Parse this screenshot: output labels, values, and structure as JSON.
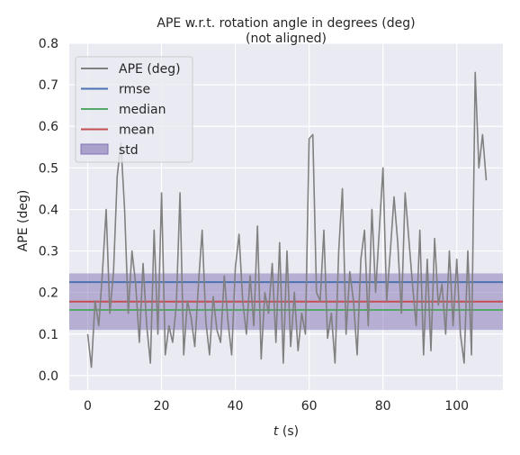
{
  "chart_data": {
    "type": "line",
    "title": "APE w.r.t. rotation angle in degrees (deg)",
    "subtitle": "(not aligned)",
    "xlabel_italic": "t",
    "xlabel_unit": " (s)",
    "ylabel": "APE (deg)",
    "xlim": [
      -5,
      112.5
    ],
    "ylim": [
      -0.035,
      0.8
    ],
    "xticks": [
      0,
      20,
      40,
      60,
      80,
      100
    ],
    "yticks": [
      0.0,
      0.1,
      0.2,
      0.3,
      0.4,
      0.5,
      0.6,
      0.7,
      0.8
    ],
    "ytick_labels": [
      "0.0",
      "0.1",
      "0.2",
      "0.3",
      "0.4",
      "0.5",
      "0.6",
      "0.7",
      "0.8"
    ],
    "grid": true,
    "legend_position": "top-left",
    "stats": {
      "rmse": 0.225,
      "median": 0.158,
      "mean": 0.178,
      "std": 0.068
    },
    "legend": [
      {
        "label": "APE (deg)",
        "kind": "line",
        "color": "#808080"
      },
      {
        "label": "rmse",
        "kind": "line",
        "color": "#4c72b0"
      },
      {
        "label": "median",
        "kind": "line",
        "color": "#55a868"
      },
      {
        "label": "mean",
        "kind": "line",
        "color": "#c44e52"
      },
      {
        "label": "std",
        "kind": "band",
        "color": "#8172b3"
      }
    ],
    "series": [
      {
        "color": "#808080",
        "x": [
          0,
          1,
          2,
          3,
          4,
          5,
          6,
          7,
          8,
          9,
          10,
          11,
          12,
          13,
          14,
          15,
          16,
          17,
          18,
          19,
          20,
          21,
          22,
          23,
          24,
          25,
          26,
          27,
          28,
          29,
          30,
          31,
          32,
          33,
          34,
          35,
          36,
          37,
          38,
          39,
          40,
          41,
          42,
          43,
          44,
          45,
          46,
          47,
          48,
          49,
          50,
          51,
          52,
          53,
          54,
          55,
          56,
          57,
          58,
          59,
          60,
          61,
          62,
          63,
          64,
          65,
          66,
          67,
          68,
          69,
          70,
          71,
          72,
          73,
          74,
          75,
          76,
          77,
          78,
          79,
          80,
          81,
          82,
          83,
          84,
          85,
          86,
          87,
          88,
          89,
          90,
          91,
          92,
          93,
          94,
          95,
          96,
          97,
          98,
          99,
          100,
          101,
          102,
          103,
          104,
          105,
          106,
          107,
          108
        ],
        "y": [
          0.1,
          0.02,
          0.18,
          0.12,
          0.25,
          0.4,
          0.15,
          0.25,
          0.48,
          0.56,
          0.4,
          0.15,
          0.3,
          0.22,
          0.08,
          0.27,
          0.12,
          0.03,
          0.35,
          0.1,
          0.44,
          0.05,
          0.12,
          0.08,
          0.17,
          0.44,
          0.05,
          0.18,
          0.14,
          0.07,
          0.22,
          0.35,
          0.13,
          0.05,
          0.19,
          0.11,
          0.08,
          0.24,
          0.13,
          0.05,
          0.26,
          0.34,
          0.18,
          0.1,
          0.24,
          0.12,
          0.36,
          0.04,
          0.2,
          0.15,
          0.27,
          0.08,
          0.32,
          0.03,
          0.3,
          0.07,
          0.2,
          0.06,
          0.15,
          0.1,
          0.57,
          0.58,
          0.2,
          0.18,
          0.35,
          0.09,
          0.15,
          0.03,
          0.3,
          0.45,
          0.1,
          0.25,
          0.18,
          0.05,
          0.28,
          0.35,
          0.12,
          0.4,
          0.2,
          0.35,
          0.5,
          0.18,
          0.3,
          0.43,
          0.32,
          0.15,
          0.44,
          0.33,
          0.22,
          0.12,
          0.35,
          0.05,
          0.28,
          0.06,
          0.33,
          0.17,
          0.22,
          0.1,
          0.3,
          0.12,
          0.28,
          0.1,
          0.03,
          0.3,
          0.05,
          0.73,
          0.5,
          0.58,
          0.47
        ]
      }
    ]
  }
}
